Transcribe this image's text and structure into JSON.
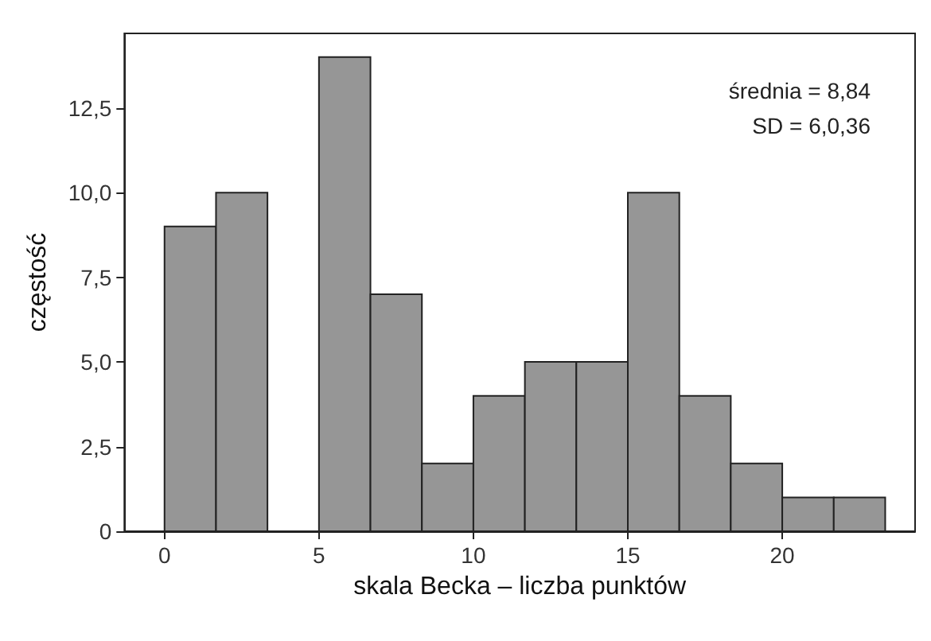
{
  "chart_data": {
    "type": "histogram",
    "xlabel": "skala Becka – liczba punktów",
    "ylabel": "częstość",
    "bins": [
      0,
      1.667,
      3.333,
      5,
      6.667,
      8.333,
      10,
      11.667,
      13.333,
      15,
      16.667,
      18.333,
      20,
      21.667,
      23.333
    ],
    "values": [
      9,
      10,
      0,
      14,
      7,
      2,
      4,
      5,
      5,
      10,
      4,
      2,
      1,
      1
    ],
    "color": "#969696",
    "xlim": [
      -1.3,
      24.3
    ],
    "xticks": [
      0,
      5,
      10,
      15,
      20
    ],
    "ylim": [
      0,
      14.7
    ],
    "yticks": [
      0,
      {
        "value": 2.5,
        "label": "2,5"
      },
      {
        "value": 5,
        "label": "5,0"
      },
      {
        "value": 7.5,
        "label": "7,5"
      },
      {
        "value": 10,
        "label": "10,0"
      },
      {
        "value": 12.5,
        "label": "12,5"
      }
    ],
    "grid": false,
    "annotations": [
      "średnia = 8,84",
      "SD = 6,0,36"
    ]
  }
}
